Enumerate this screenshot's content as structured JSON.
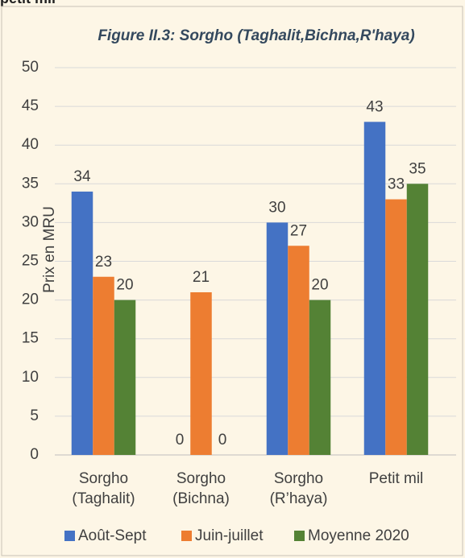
{
  "header": {
    "text": "petit mil"
  },
  "chart_data": {
    "type": "bar",
    "title": "Figure II.3: Sorgho (Taghalit,Bichna,R'haya)",
    "y_label": "Prix en MRU",
    "categories": [
      "Sorgho (Taghalit)",
      "Sorgho (Bichna)",
      "Sorgho (R’haya)",
      "Petit mil"
    ],
    "series": [
      {
        "name": "Août-Sept",
        "color": "#4472c4",
        "values": [
          34,
          0,
          30,
          43
        ]
      },
      {
        "name": "Juin-juillet",
        "color": "#ed7d31",
        "values": [
          23,
          21,
          27,
          33
        ]
      },
      {
        "name": "Moyenne 2020",
        "color": "#548235",
        "values": [
          20,
          0,
          20,
          35
        ]
      }
    ],
    "ylim": [
      0,
      50
    ],
    "yticks": [
      0,
      5,
      10,
      15,
      20,
      25,
      30,
      35,
      40,
      45,
      50
    ],
    "grid": true,
    "legend": "bottom"
  }
}
